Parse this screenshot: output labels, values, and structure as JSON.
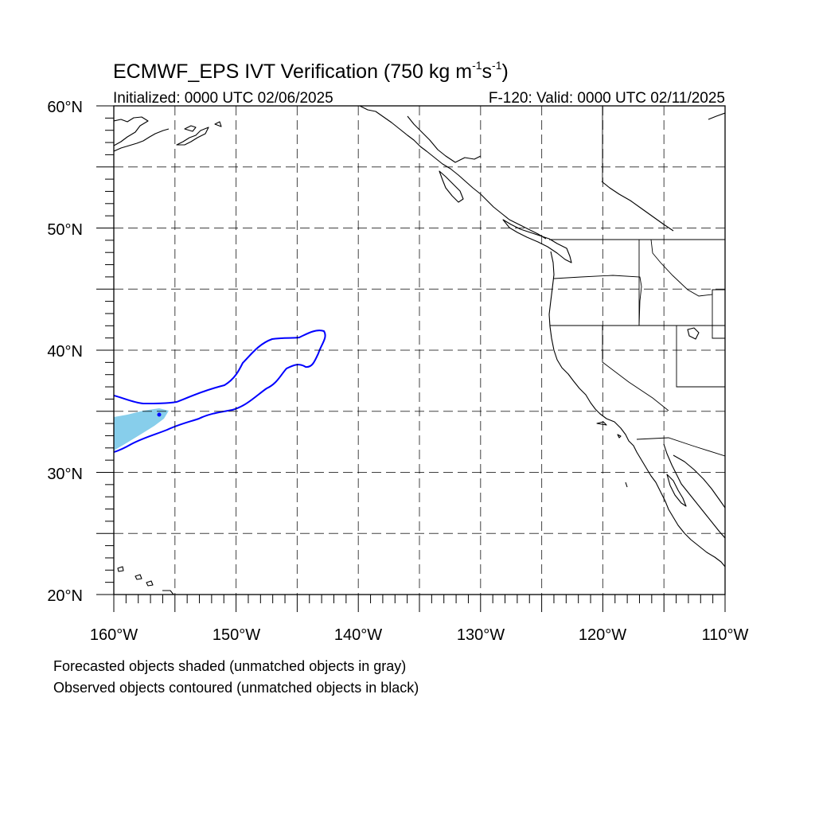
{
  "title": {
    "main": "ECMWF_EPS IVT Verification (750 kg m",
    "sup1": "-1",
    "mid": "s",
    "sup2": "-1",
    "end": ")"
  },
  "subtitle_left": "Initialized: 0000 UTC 02/06/2025",
  "subtitle_right": "F-120: Valid: 0000 UTC 02/11/2025",
  "lat_labels": [
    "60°N",
    "50°N",
    "40°N",
    "30°N",
    "20°N"
  ],
  "lon_labels": [
    "160°W",
    "150°W",
    "140°W",
    "130°W",
    "120°W",
    "110°W"
  ],
  "footnote": [
    "Forecasted objects shaded (unmatched objects in gray)",
    "Observed objects contoured (unmatched objects in black)"
  ],
  "map": {
    "lon_range": [
      -160,
      -110
    ],
    "lat_range": [
      20,
      60
    ],
    "grid_step_deg": 5,
    "projection": "cylindrical equidistant"
  },
  "colors": {
    "forecast_shade": "#87ceeb",
    "observed_contour": "#0000ff",
    "coastline": "#000000",
    "grid": "#000000"
  }
}
